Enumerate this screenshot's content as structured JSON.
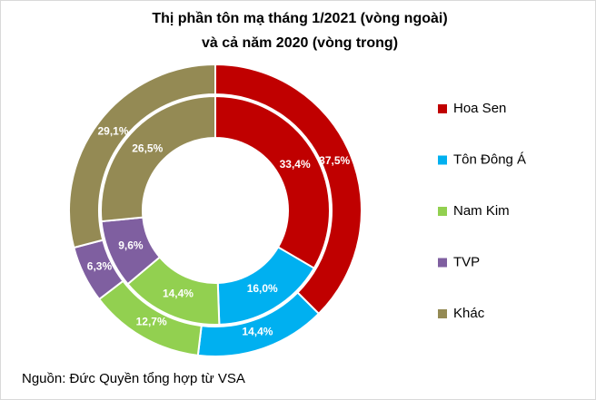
{
  "chart_data": {
    "type": "donut",
    "title": [
      "Thị phần tôn mạ tháng 1/2021 (vòng ngoài)",
      "và cả năm 2020 (vòng trong)"
    ],
    "categories": [
      "Hoa Sen",
      "Tôn Đông Á",
      "Nam Kim",
      "TVP",
      "Khác"
    ],
    "colors": [
      "#c00000",
      "#00b0f0",
      "#92d050",
      "#7f5fa0",
      "#948a54"
    ],
    "series": [
      {
        "values": [
          37.5,
          14.4,
          12.7,
          6.3,
          29.1
        ],
        "value_labels": [
          "37,5%",
          "14,4%",
          "12,7%",
          "6,3%",
          "29,1%"
        ]
      },
      {
        "values": [
          33.4,
          16.0,
          14.4,
          9.6,
          26.5
        ],
        "value_labels": [
          "33,4%",
          "16,0%",
          "14,4%",
          "9,6%",
          "26,5%"
        ]
      }
    ],
    "legend": "right",
    "source": "Nguồn: Đức Quyền tổng hợp từ VSA"
  }
}
